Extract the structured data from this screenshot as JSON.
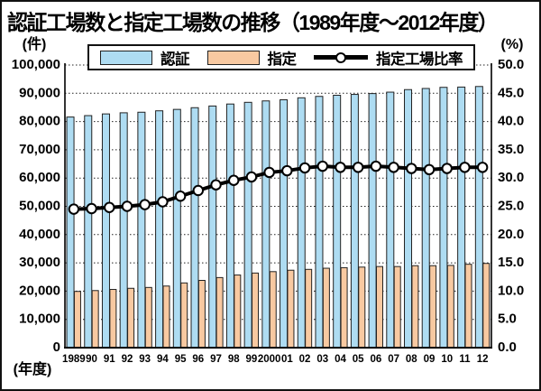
{
  "title": "認証工場数と指定工場数の推移（1989年度～2012年度）",
  "legend": {
    "items": [
      {
        "label": "認証",
        "type": "bar",
        "color": "#AEDCF2"
      },
      {
        "label": "指定",
        "type": "bar",
        "color": "#F8C9A1"
      },
      {
        "label": "指定工場比率",
        "type": "line",
        "color": "#000000",
        "marker_fill": "#FFFFFF"
      }
    ]
  },
  "axes": {
    "left_unit": "(件)",
    "right_unit": "(%)",
    "x_unit": "(年度)",
    "left_ticks": [
      "100,000",
      "90,000",
      "80,000",
      "70,000",
      "60,000",
      "50,000",
      "40,000",
      "30,000",
      "20,000",
      "10,000",
      "0"
    ],
    "right_ticks": [
      "50.0",
      "45.0",
      "40.0",
      "35.0",
      "30.0",
      "25.0",
      "20.0",
      "15.0",
      "10.0",
      "5.0",
      "0.0"
    ]
  },
  "chart_data": {
    "type": "bar",
    "subtype": "bar+line dual-axis",
    "title": "認証工場数と指定工場数の推移（1989年度～2012年度）",
    "categories": [
      "1989",
      "90",
      "91",
      "92",
      "93",
      "94",
      "95",
      "96",
      "97",
      "98",
      "99",
      "2000",
      "01",
      "02",
      "03",
      "04",
      "05",
      "06",
      "07",
      "08",
      "09",
      "10",
      "11",
      "12"
    ],
    "series": [
      {
        "name": "認証",
        "type": "bar",
        "axis": "left",
        "color": "#AEDCF2",
        "values": [
          81600,
          82100,
          82700,
          83100,
          83300,
          83800,
          84300,
          84900,
          85500,
          86200,
          86800,
          87300,
          87700,
          88400,
          88900,
          89300,
          89600,
          89900,
          90400,
          91300,
          91700,
          92100,
          92200,
          92400
        ]
      },
      {
        "name": "指定",
        "type": "bar",
        "axis": "left",
        "color": "#F8C9A1",
        "values": [
          19900,
          20200,
          20600,
          21000,
          21300,
          21800,
          22900,
          23800,
          24800,
          25700,
          26400,
          26900,
          27400,
          27700,
          28100,
          28300,
          28500,
          28700,
          28700,
          29000,
          29000,
          29100,
          29500,
          29800
        ]
      },
      {
        "name": "指定工場比率",
        "type": "line",
        "axis": "right",
        "color": "#000000",
        "marker": "open-circle",
        "values": [
          24.5,
          24.6,
          24.8,
          25.0,
          25.3,
          25.8,
          26.8,
          27.8,
          28.8,
          29.6,
          30.2,
          31.0,
          31.3,
          31.8,
          32.1,
          31.9,
          31.9,
          32.1,
          31.9,
          31.7,
          31.5,
          31.7,
          31.9,
          31.9
        ]
      }
    ],
    "left_axis": {
      "label": "(件)",
      "min": 0,
      "max": 100000,
      "step": 10000
    },
    "right_axis": {
      "label": "(%)",
      "min": 0,
      "max": 50,
      "step": 5
    },
    "x_label": "(年度)",
    "grid": "dotted-horizontal",
    "legend_position": "top"
  }
}
